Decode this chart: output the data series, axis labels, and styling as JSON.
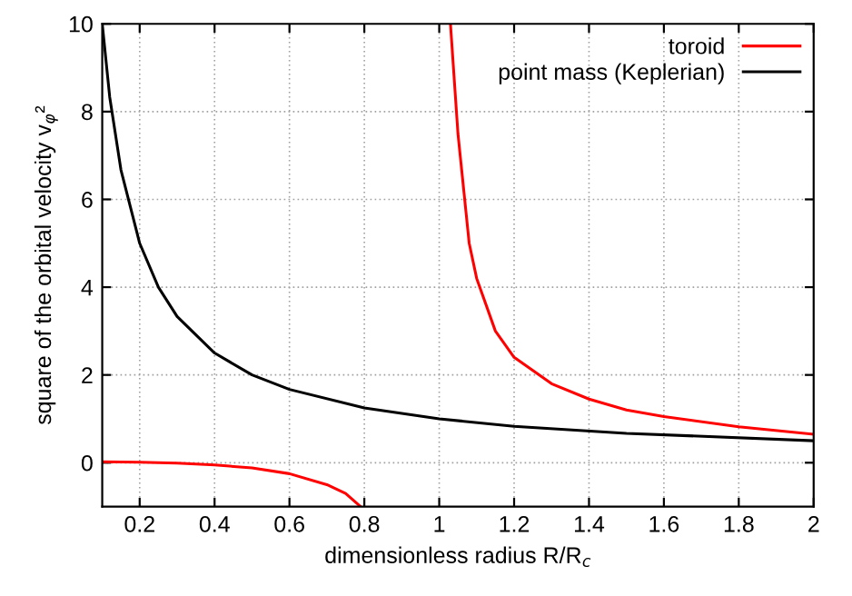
{
  "chart_data": {
    "type": "line",
    "xlabel": "dimensionless radius R/R$_{c}$",
    "ylabel": "square of the orbital velocity v$_{φ}$²",
    "series": [
      {
        "name": "toroid",
        "color": "#ff0000",
        "x": [
          0.1,
          0.2,
          0.3,
          0.4,
          0.5,
          0.6,
          0.7,
          0.75,
          0.79,
          0.9,
          1.03,
          1.05,
          1.08,
          1.1,
          1.15,
          1.2,
          1.3,
          1.4,
          1.5,
          1.6,
          1.8,
          2.0
        ],
        "values": [
          0.02,
          0.01,
          -0.01,
          -0.05,
          -0.12,
          -0.25,
          -0.5,
          -0.7,
          -1.0,
          null,
          10,
          7.5,
          5,
          4.2,
          3.0,
          2.4,
          1.8,
          1.45,
          1.2,
          1.05,
          0.82,
          0.65
        ]
      },
      {
        "name": "point mass (Keplerian)",
        "color": "#000000",
        "x": [
          0.1,
          0.12,
          0.15,
          0.2,
          0.25,
          0.3,
          0.4,
          0.5,
          0.6,
          0.8,
          1.0,
          1.2,
          1.5,
          2.0
        ],
        "values": [
          10,
          8.33,
          6.67,
          5,
          4,
          3.33,
          2.5,
          2,
          1.67,
          1.25,
          1,
          0.83,
          0.67,
          0.5
        ]
      }
    ],
    "xlim": [
      0.1,
      2
    ],
    "xticks": [
      0.2,
      0.4,
      0.6,
      0.8,
      1,
      1.2,
      1.4,
      1.6,
      1.8,
      2
    ],
    "ylim": [
      -1,
      10
    ],
    "yticks": [
      0,
      2,
      4,
      6,
      8,
      10
    ],
    "grid": true,
    "legend": "top right",
    "line_style": "solid",
    "marker": "none"
  }
}
